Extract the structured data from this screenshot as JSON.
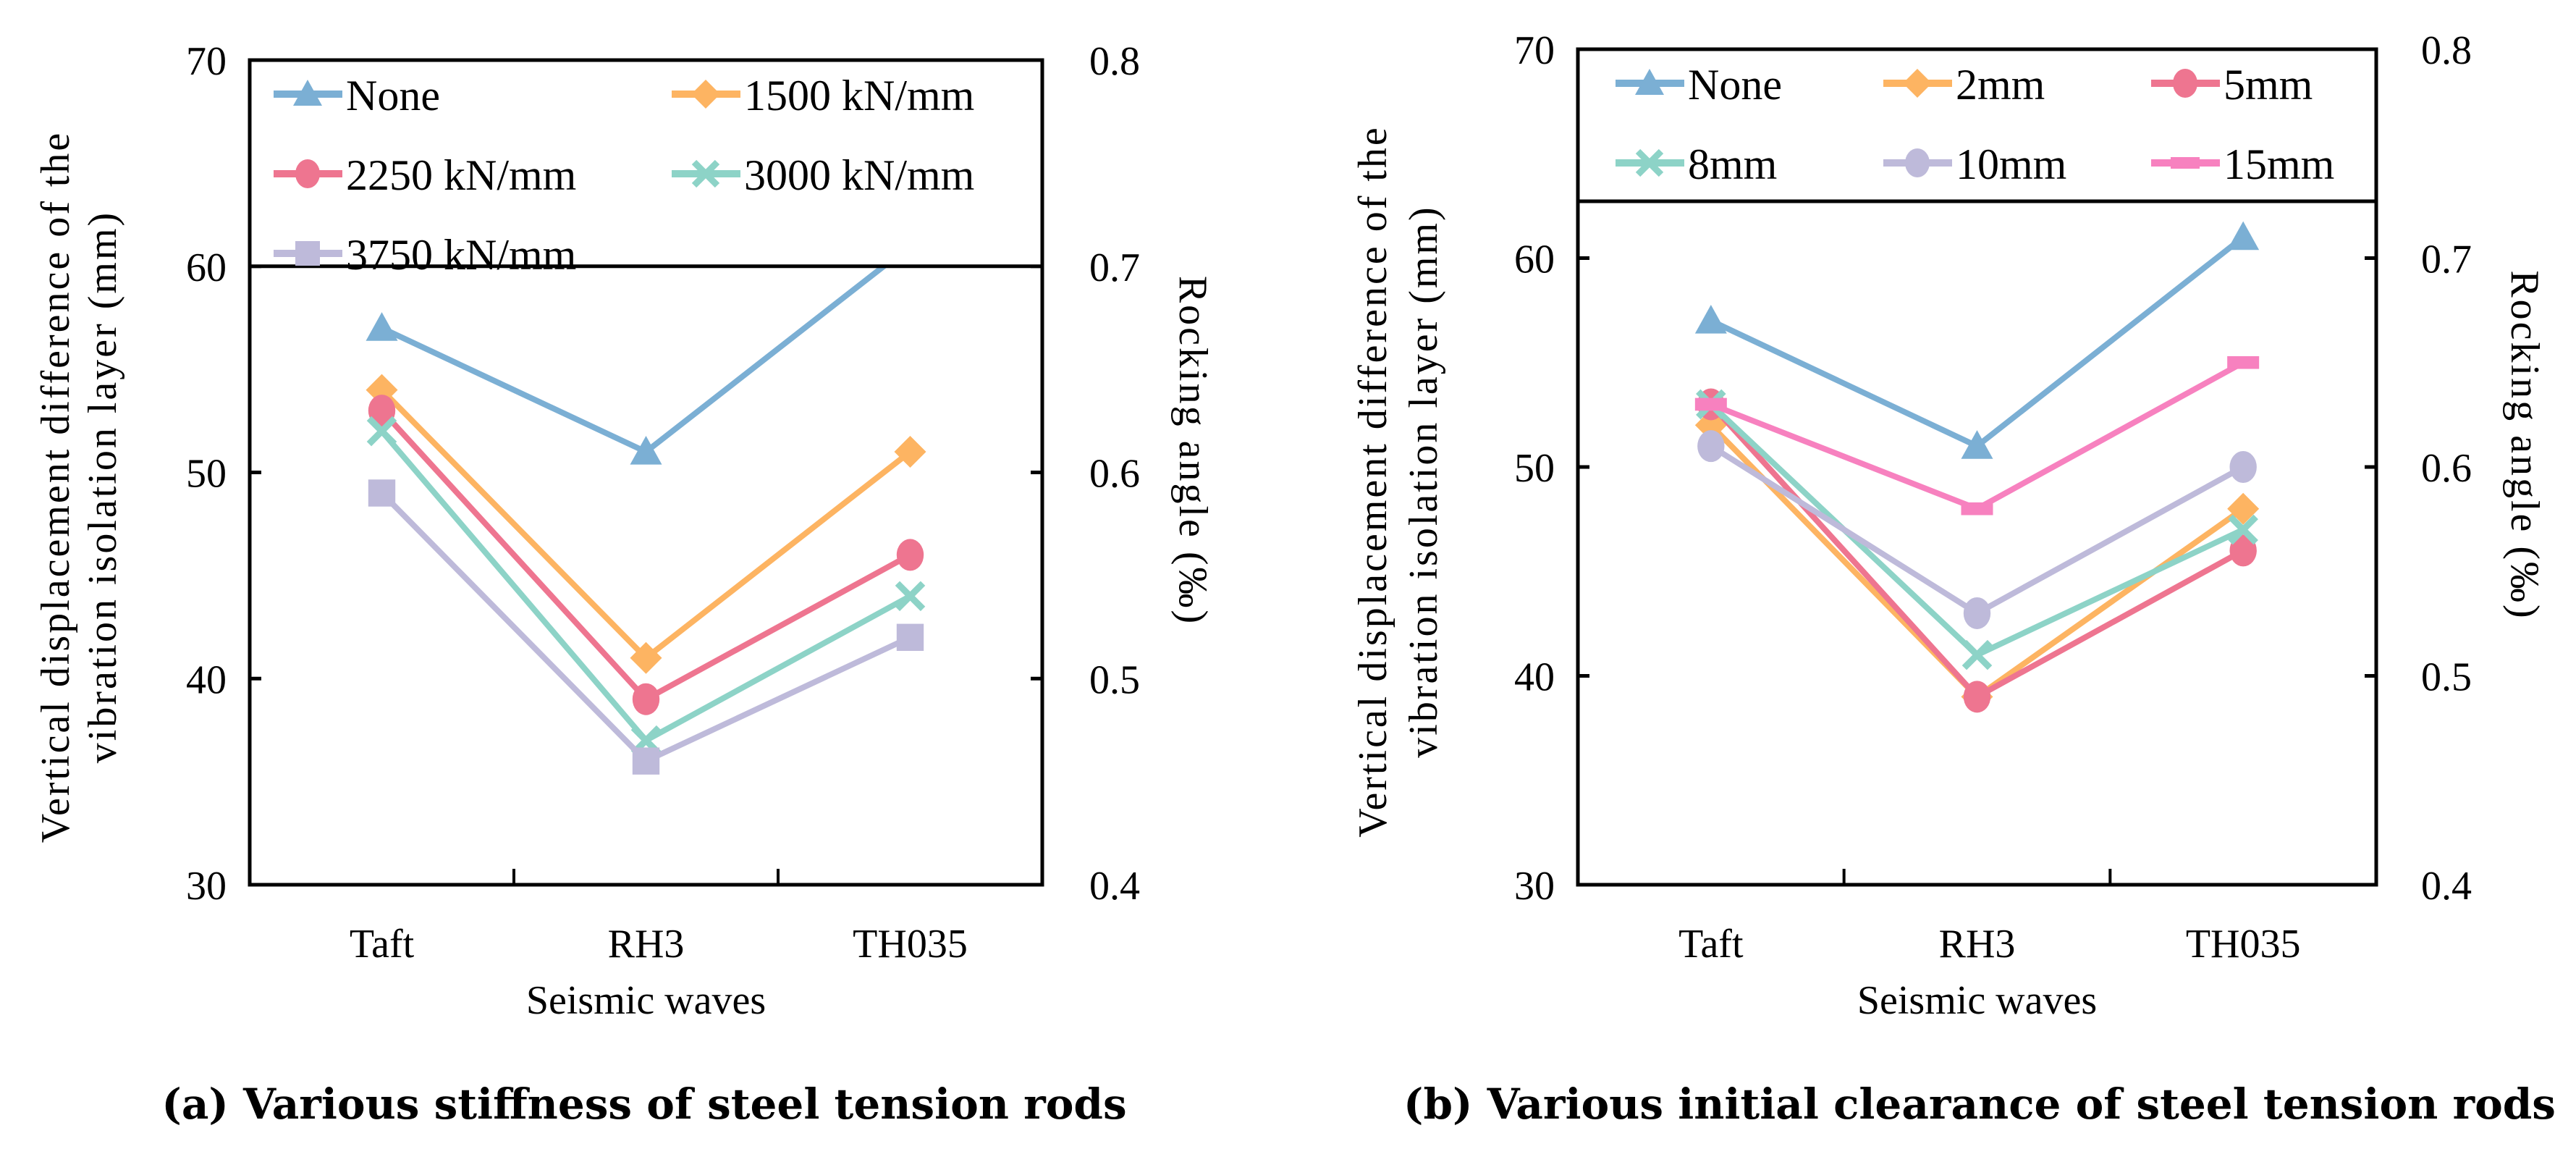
{
  "chart_data": [
    {
      "type": "line",
      "caption": "(a) Various stiffness of steel tension rods",
      "xlabel": "Seismic waves",
      "ylabel_lines": [
        "Vertical displacement difference of the",
        "vibration isolation layer (mm)"
      ],
      "y2label": "Rocking angle (‰)",
      "categories": [
        "Taft",
        "RH3",
        "TH035"
      ],
      "ylim": [
        30,
        70
      ],
      "yticks": [
        "30",
        "40",
        "50",
        "60",
        "70"
      ],
      "y2lim": [
        0.4,
        0.8
      ],
      "y2ticks": [
        "0.4",
        "0.5",
        "0.6",
        "0.7",
        "0.8"
      ],
      "legend_position": "top",
      "legend_columns": 2,
      "series": [
        {
          "name": "None",
          "marker": "triangle",
          "color": "#7BAFD4",
          "values": [
            57,
            51,
            61
          ]
        },
        {
          "name": "1500 kN/mm",
          "marker": "diamond",
          "color": "#FDB462",
          "values": [
            54,
            41,
            51
          ]
        },
        {
          "name": "2250 kN/mm",
          "marker": "circle",
          "color": "#EE7590",
          "values": [
            53,
            39,
            46
          ]
        },
        {
          "name": "3000 kN/mm",
          "marker": "x",
          "color": "#8DD3C7",
          "values": [
            52,
            37,
            44
          ]
        },
        {
          "name": "3750 kN/mm",
          "marker": "square",
          "color": "#BEBADA",
          "values": [
            49,
            36,
            42
          ]
        }
      ]
    },
    {
      "type": "line",
      "caption": "(b) Various initial clearance of steel tension rods",
      "xlabel": "Seismic waves",
      "ylabel_lines": [
        "Vertical displacement difference of the",
        "vibration isolation layer (mm)"
      ],
      "y2label": "Rocking angle (‰)",
      "categories": [
        "Taft",
        "RH3",
        "TH035"
      ],
      "ylim": [
        30,
        70
      ],
      "yticks": [
        "30",
        "40",
        "50",
        "60",
        "70"
      ],
      "y2lim": [
        0.4,
        0.8
      ],
      "y2ticks": [
        "0.4",
        "0.5",
        "0.6",
        "0.7",
        "0.8"
      ],
      "legend_position": "top",
      "legend_columns": 3,
      "series": [
        {
          "name": "None",
          "marker": "triangle",
          "color": "#7BAFD4",
          "values": [
            57,
            51,
            61
          ]
        },
        {
          "name": "2mm",
          "marker": "diamond",
          "color": "#FDB462",
          "values": [
            52,
            39,
            48
          ]
        },
        {
          "name": "5mm",
          "marker": "circle",
          "color": "#EE7590",
          "values": [
            53,
            39,
            46
          ]
        },
        {
          "name": "8mm",
          "marker": "x",
          "color": "#8DD3C7",
          "values": [
            53,
            41,
            47
          ]
        },
        {
          "name": "10mm",
          "marker": "circle",
          "color": "#BEBADA",
          "values": [
            51,
            43,
            50
          ]
        },
        {
          "name": "15mm",
          "marker": "dash",
          "color": "#F781BF",
          "values": [
            53,
            48,
            55
          ]
        }
      ]
    }
  ]
}
